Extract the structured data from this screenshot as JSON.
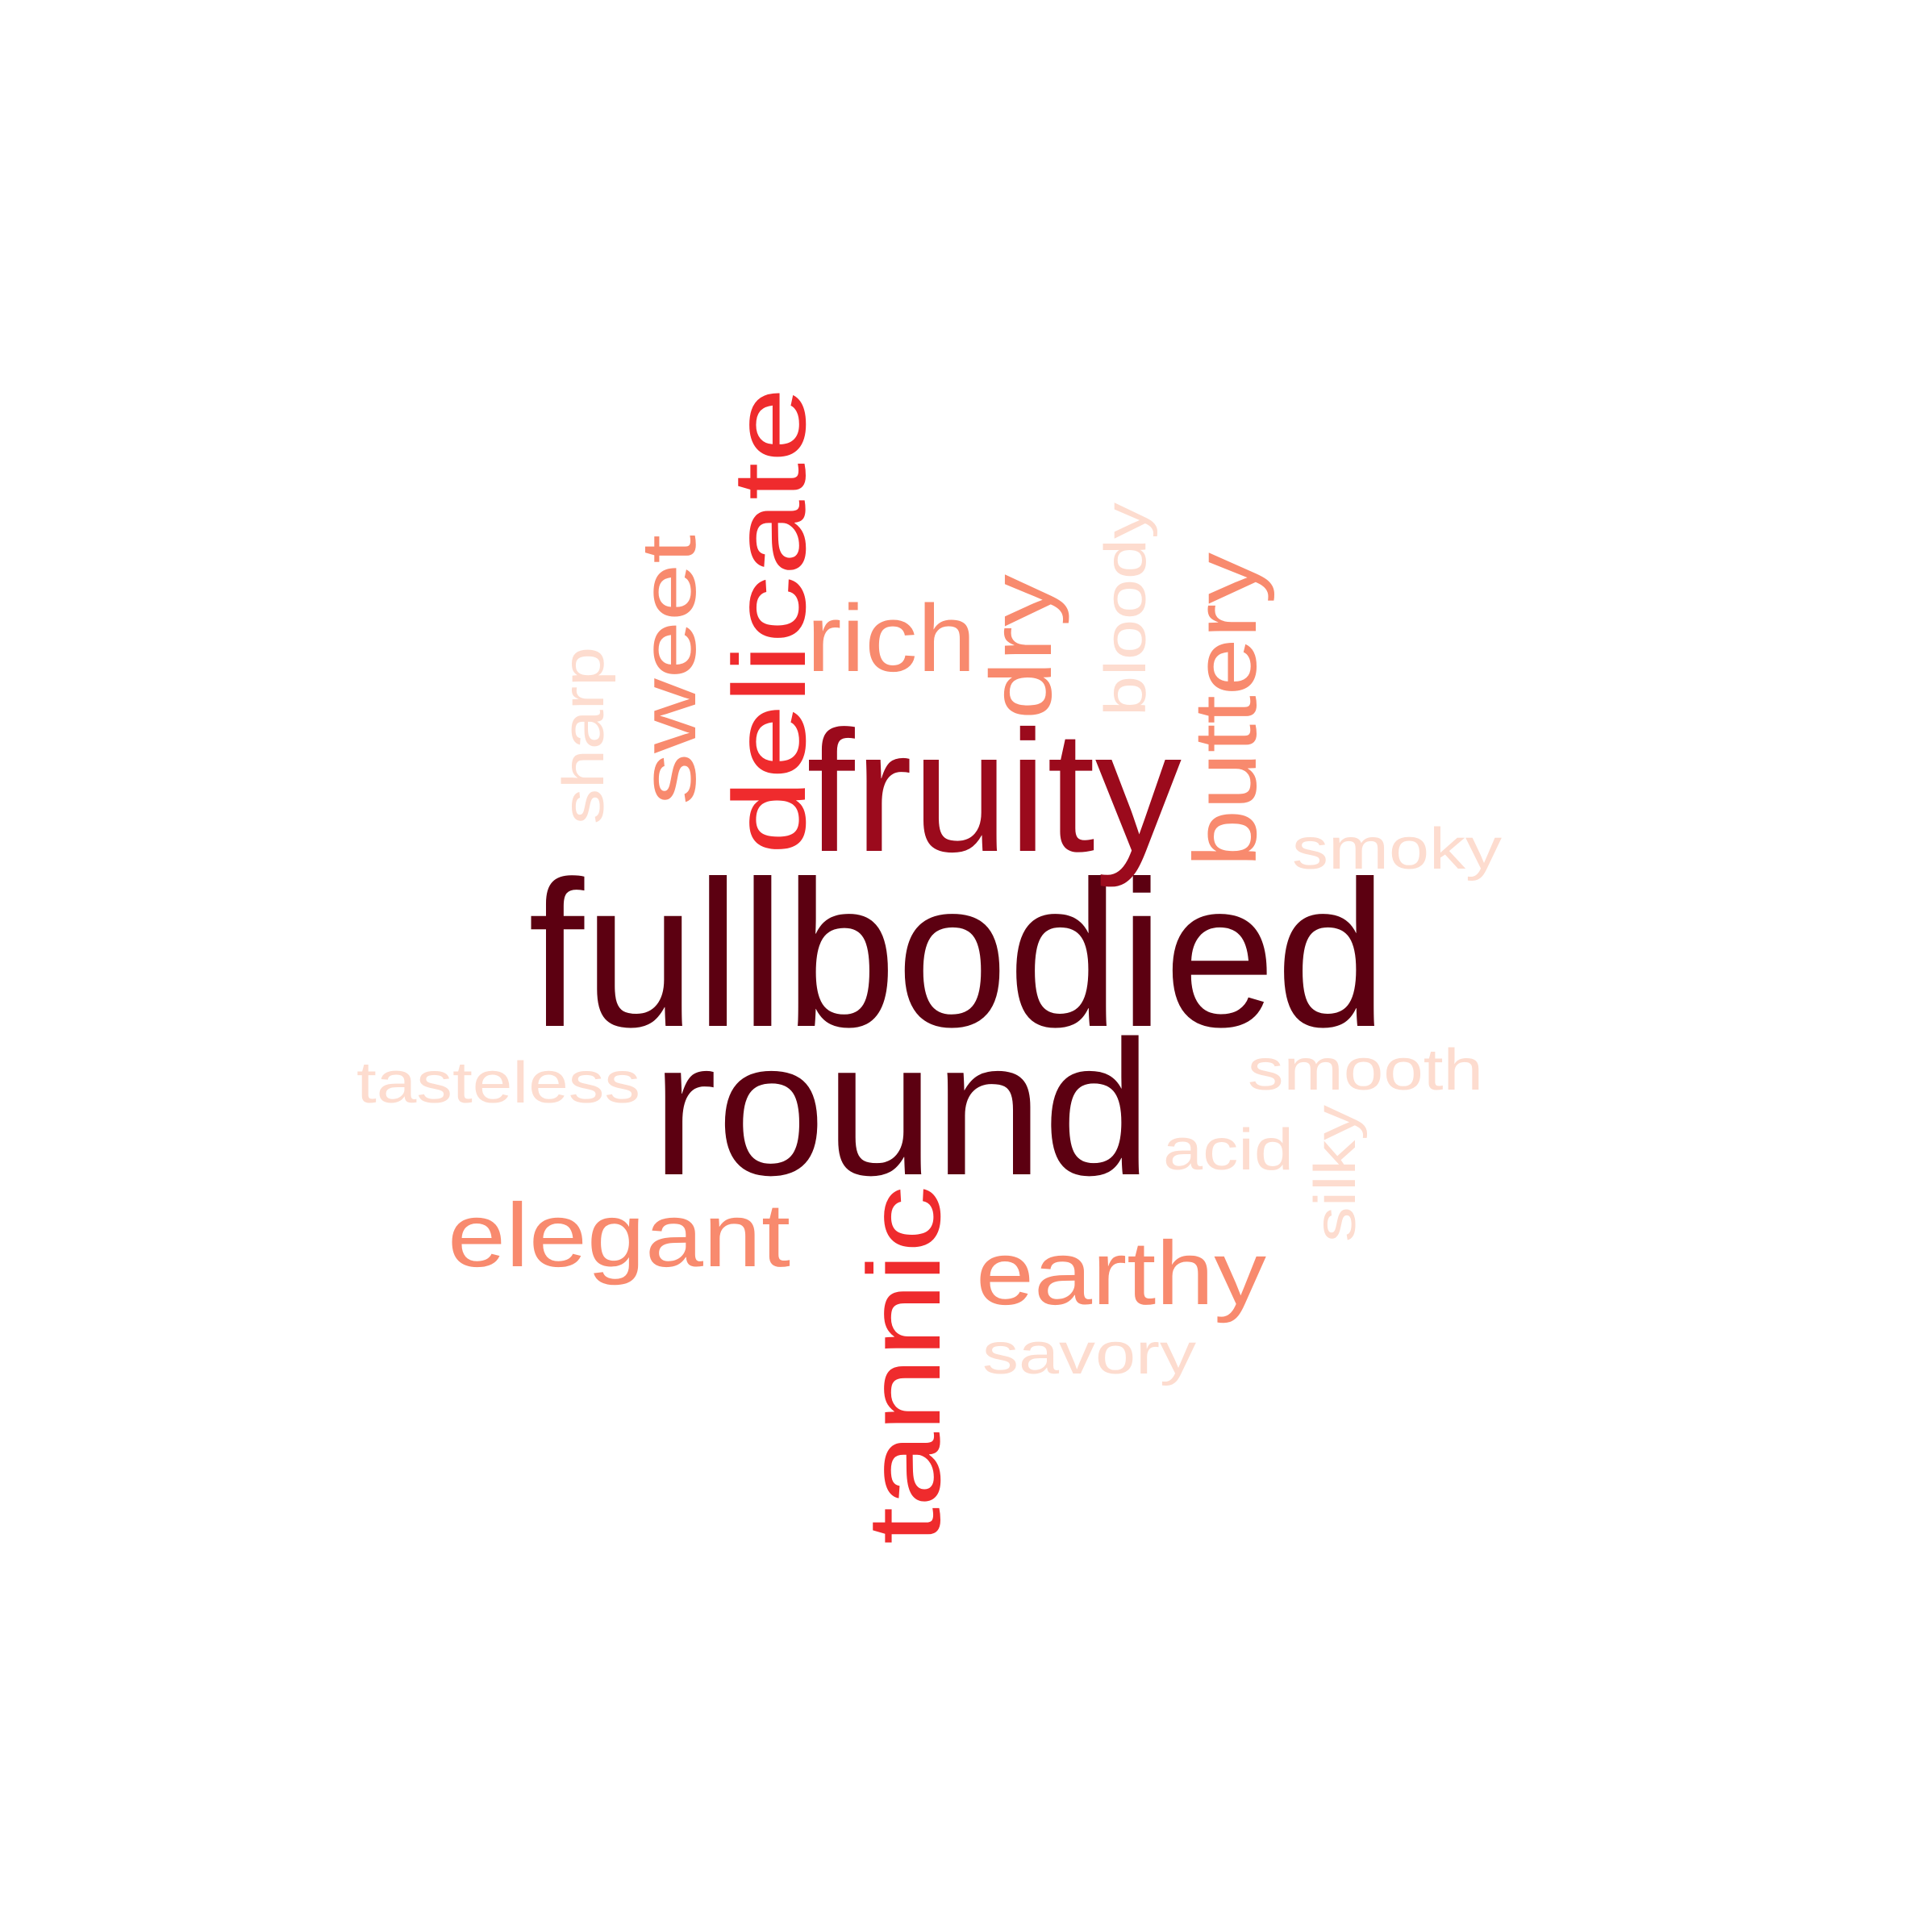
{
  "word_cloud": {
    "palette": {
      "darkest": "#5c0011",
      "dark": "#9b0a1c",
      "medium": "#ef2b2d",
      "light": "#f88a6e",
      "lightest": "#fddccf"
    },
    "words": [
      {
        "text": "fullbodied",
        "color": "#5c0011",
        "rotated": false
      },
      {
        "text": "round",
        "color": "#5c0011",
        "rotated": false
      },
      {
        "text": "fruity",
        "color": "#9b0a1c",
        "rotated": false
      },
      {
        "text": "delicate",
        "color": "#ef2b2d",
        "rotated": true
      },
      {
        "text": "tannic",
        "color": "#ef2b2d",
        "rotated": true
      },
      {
        "text": "sweet",
        "color": "#f88a6e",
        "rotated": true
      },
      {
        "text": "rich",
        "color": "#f88a6e",
        "rotated": false
      },
      {
        "text": "dry",
        "color": "#f88a6e",
        "rotated": true
      },
      {
        "text": "buttery",
        "color": "#f88a6e",
        "rotated": true
      },
      {
        "text": "elegant",
        "color": "#f88a6e",
        "rotated": false
      },
      {
        "text": "earthy",
        "color": "#f88a6e",
        "rotated": false
      },
      {
        "text": "sharp",
        "color": "#fddccf",
        "rotated": true
      },
      {
        "text": "bloody",
        "color": "#fddccf",
        "rotated": true
      },
      {
        "text": "smoky",
        "color": "#fddccf",
        "rotated": false
      },
      {
        "text": "tasteless",
        "color": "#fddccf",
        "rotated": false
      },
      {
        "text": "smooth",
        "color": "#fddccf",
        "rotated": false
      },
      {
        "text": "acid",
        "color": "#fddccf",
        "rotated": false
      },
      {
        "text": "silky",
        "color": "#fddccf",
        "rotated": true
      },
      {
        "text": "savory",
        "color": "#fddccf",
        "rotated": false
      }
    ]
  }
}
